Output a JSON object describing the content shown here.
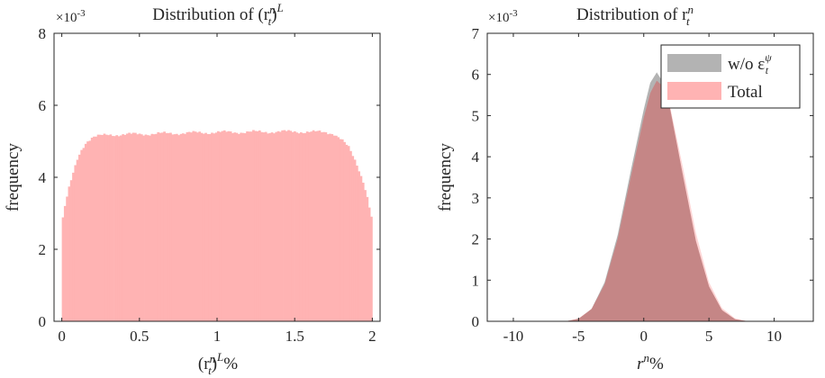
{
  "chart_data": [
    {
      "type": "histogram",
      "title": "Distribution of (r_t^n)^L",
      "title_parts": {
        "lead": "Distribution of (r",
        "base_sup": "n",
        "base_sub": "t",
        "close": ")",
        "outer_sup": "L"
      },
      "xlabel": "(r_t^n)^L%",
      "xlabel_parts": {
        "lead": "(r",
        "base_sup": "n",
        "base_sub": "t",
        "close": ")",
        "outer_sup": "L",
        "tail": "%"
      },
      "ylabel": "frequency",
      "y_exponent": "×10-3",
      "y_exponent_parts": {
        "base": "×10",
        "exp": "-3"
      },
      "xlim": [
        -0.05,
        2.05
      ],
      "ylim": [
        0,
        8
      ],
      "xticks": [
        "0",
        "0.5",
        "1",
        "1.5",
        "2"
      ],
      "xtick_values": [
        0,
        0.5,
        1,
        1.5,
        2
      ],
      "yticks": [
        "0",
        "2",
        "4",
        "6",
        "8"
      ],
      "ytick_values": [
        0,
        2,
        4,
        6,
        8
      ],
      "series": [
        {
          "color": "#ffb3b3",
          "x": [
            0.0,
            0.02,
            0.05,
            0.08,
            0.1,
            0.13,
            0.16,
            0.2,
            0.25,
            0.3,
            0.5,
            1.0,
            1.5,
            1.7,
            1.75,
            1.8,
            1.85,
            1.9,
            1.94,
            1.97,
            2.0
          ],
          "y": [
            2.7,
            3.2,
            3.75,
            4.2,
            4.5,
            4.8,
            5.0,
            5.12,
            5.15,
            5.18,
            5.2,
            5.25,
            5.27,
            5.25,
            5.22,
            5.05,
            4.8,
            4.35,
            3.9,
            3.4,
            2.75
          ]
        }
      ]
    },
    {
      "type": "area",
      "title": "Distribution of r_t^n",
      "title_parts": {
        "lead": "Distribution of r",
        "sup": "n",
        "sub": "t"
      },
      "xlabel": "r^n%",
      "xlabel_parts": {
        "lead": "r",
        "sup": "n",
        "tail": "%"
      },
      "ylabel": "frequency",
      "y_exponent": "×10-3",
      "y_exponent_parts": {
        "base": "×10",
        "exp": "-3"
      },
      "xlim": [
        -12,
        13
      ],
      "ylim": [
        0,
        7
      ],
      "xticks": [
        "-10",
        "-5",
        "0",
        "5",
        "10"
      ],
      "xtick_values": [
        -10,
        -5,
        0,
        5,
        10
      ],
      "yticks": [
        "0",
        "1",
        "2",
        "3",
        "4",
        "5",
        "6",
        "7"
      ],
      "ytick_values": [
        0,
        1,
        2,
        3,
        4,
        5,
        6,
        7
      ],
      "legend": "top-right",
      "series": [
        {
          "name": "w/o ε_t^ψ",
          "name_parts": {
            "lead": "w/o ε",
            "sup": "ψ",
            "sub": "t"
          },
          "color": "#b3b3b3",
          "x": [
            -6,
            -5,
            -4,
            -3,
            -2,
            -1,
            0,
            0.5,
            1,
            1.5,
            2,
            3,
            4,
            5,
            6,
            7,
            8
          ],
          "y": [
            0.0,
            0.06,
            0.3,
            0.95,
            2.1,
            3.65,
            5.15,
            5.8,
            6.05,
            5.8,
            5.2,
            3.55,
            1.95,
            0.85,
            0.27,
            0.05,
            0.0
          ]
        },
        {
          "name": "Total",
          "color": "#ffb3b3",
          "x": [
            -6,
            -5,
            -4,
            -3,
            -2,
            -1,
            0,
            0.5,
            1,
            1.5,
            2,
            3,
            4,
            5,
            6,
            7,
            8
          ],
          "y": [
            0.0,
            0.07,
            0.3,
            0.9,
            2.0,
            3.5,
            4.95,
            5.55,
            5.85,
            5.7,
            5.25,
            3.75,
            2.15,
            0.95,
            0.32,
            0.07,
            0.0
          ]
        }
      ]
    }
  ]
}
